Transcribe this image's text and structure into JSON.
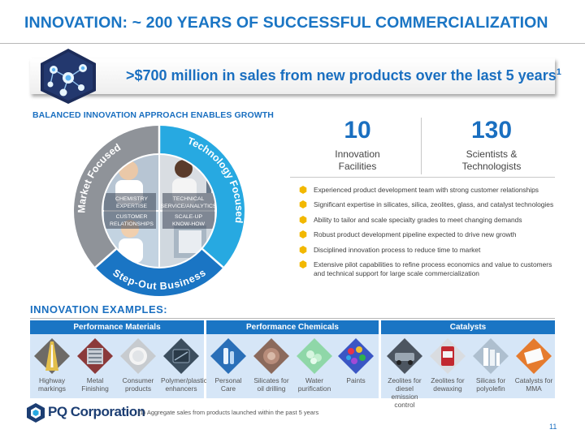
{
  "header": {
    "title": "INNOVATION: ~ 200 YEARS OF SUCCESSFUL COMMERCIALIZATION"
  },
  "banner": {
    "text": ">$700 million in sales from new products over the last 5 years",
    "superscript": "1"
  },
  "approach": {
    "heading": "BALANCED INNOVATION APPROACH ENABLES GROWTH",
    "arc_left": "Market Focused",
    "arc_right": "Technology Focused",
    "arc_bottom": "Step-Out Business",
    "quadrants": [
      {
        "lines": [
          "CHEMISTRY",
          "EXPERTISE"
        ]
      },
      {
        "lines": [
          "TECHNICAL",
          "SERVICE/ANALYTICS"
        ]
      },
      {
        "lines": [
          "CUSTOMER",
          "RELATIONSHIPS"
        ]
      },
      {
        "lines": [
          "SCALE-UP",
          "KNOW-HOW"
        ]
      }
    ]
  },
  "stats": [
    {
      "value": "10",
      "label_lines": [
        "Innovation",
        "Facilities"
      ]
    },
    {
      "value": "130",
      "label_lines": [
        "Scientists &",
        "Technologists"
      ]
    }
  ],
  "bullets": [
    "Experienced product development team with strong customer relationships",
    "Significant expertise in silicates, silica, zeolites, glass, and catalyst technologies",
    "Ability to tailor and scale specialty grades to meet changing demands",
    "Robust product development pipeline expected to drive new growth",
    "Disciplined innovation process to reduce time to market",
    "Extensive pilot capabilities to refine process economics and value to customers and technical support for large scale commercialization"
  ],
  "examples": {
    "heading": "INNOVATION EXAMPLES:",
    "groups": [
      {
        "title": "Performance Materials",
        "items": [
          {
            "label": "Highway markings",
            "icon": "highway-icon"
          },
          {
            "label": "Metal Finishing",
            "icon": "metal-finishing-icon"
          },
          {
            "label": "Consumer products",
            "icon": "consumer-products-icon"
          },
          {
            "label": "Polymer/plastics enhancers",
            "icon": "polymer-icon"
          }
        ]
      },
      {
        "title": "Performance Chemicals",
        "items": [
          {
            "label": "Personal Care",
            "icon": "personal-care-icon"
          },
          {
            "label": "Silicates for oil drilling",
            "icon": "oil-drilling-icon"
          },
          {
            "label": "Water purification",
            "icon": "water-icon"
          },
          {
            "label": "Paints",
            "icon": "paints-icon"
          }
        ]
      },
      {
        "title": "Catalysts",
        "items": [
          {
            "label": "Zeolites for diesel emission control",
            "icon": "diesel-icon"
          },
          {
            "label": "Zeolites for dewaxing",
            "icon": "dewaxing-icon"
          },
          {
            "label": "Silicas for polyolefin",
            "icon": "polyolefin-icon"
          },
          {
            "label": "Catalysts for MMA",
            "icon": "mma-icon"
          }
        ]
      }
    ]
  },
  "footer": {
    "logo_text": "PQ Corporation",
    "footnote": "(1)   Aggregate sales from products launched within the past 5 years",
    "page_number": "11"
  },
  "colors": {
    "primary_blue": "#1a75c4",
    "teal": "#27a9e1",
    "gray": "#8f9399",
    "bullet_gold": "#f2b800",
    "navy": "#1c3e73",
    "panel_blue": "#d6e6f7"
  }
}
